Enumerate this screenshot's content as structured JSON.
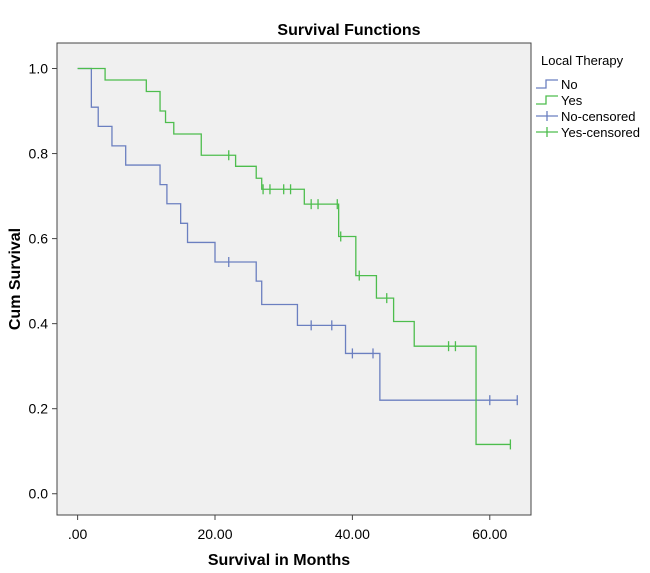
{
  "chart_data": {
    "type": "line",
    "subtype": "kaplan-meier step",
    "title": "Survival Functions",
    "xlabel": "Survival in Months",
    "ylabel": "Cum Survival",
    "xlim": [
      -3,
      66
    ],
    "ylim": [
      -0.05,
      1.06
    ],
    "x_ticks": [
      0,
      20,
      40,
      60
    ],
    "x_tick_labels": [
      ".00",
      "20.00",
      "40.00",
      "60.00"
    ],
    "y_ticks": [
      0.0,
      0.2,
      0.4,
      0.6,
      0.8,
      1.0
    ],
    "y_tick_labels": [
      "0.0",
      "0.2",
      "0.4",
      "0.6",
      "0.8",
      "1.0"
    ],
    "grid": false,
    "legend": {
      "title": "Local Therapy",
      "position": "right",
      "entries": [
        "No",
        "Yes",
        "No-censored",
        "Yes-censored"
      ]
    },
    "series": [
      {
        "name": "No",
        "color": "#6b7fc0",
        "steps": [
          [
            0,
            1.0
          ],
          [
            2,
            0.909
          ],
          [
            3,
            0.864
          ],
          [
            5,
            0.818
          ],
          [
            7,
            0.773
          ],
          [
            12,
            0.727
          ],
          [
            13,
            0.682
          ],
          [
            15,
            0.636
          ],
          [
            16,
            0.591
          ],
          [
            20,
            0.545
          ],
          [
            26,
            0.5
          ],
          [
            26.8,
            0.445
          ],
          [
            32,
            0.396
          ],
          [
            39,
            0.33
          ],
          [
            44,
            0.22
          ]
        ],
        "end_x": 64,
        "censored": [
          22,
          34,
          37,
          40,
          43,
          60,
          64
        ]
      },
      {
        "name": "Yes",
        "color": "#4dbd4d",
        "steps": [
          [
            0,
            1.0
          ],
          [
            4,
            0.973
          ],
          [
            10,
            0.946
          ],
          [
            12,
            0.9
          ],
          [
            12.8,
            0.873
          ],
          [
            14,
            0.846
          ],
          [
            18,
            0.796
          ],
          [
            23,
            0.77
          ],
          [
            26,
            0.742
          ],
          [
            26.8,
            0.716
          ],
          [
            33,
            0.681
          ],
          [
            38,
            0.605
          ],
          [
            40.5,
            0.513
          ],
          [
            43.5,
            0.46
          ],
          [
            46,
            0.405
          ],
          [
            49,
            0.347
          ],
          [
            58,
            0.116
          ]
        ],
        "end_x": 63,
        "censored": [
          22,
          27,
          28,
          30,
          31,
          34,
          35,
          37.8,
          38.3,
          41,
          45,
          54,
          55,
          63
        ]
      }
    ]
  }
}
